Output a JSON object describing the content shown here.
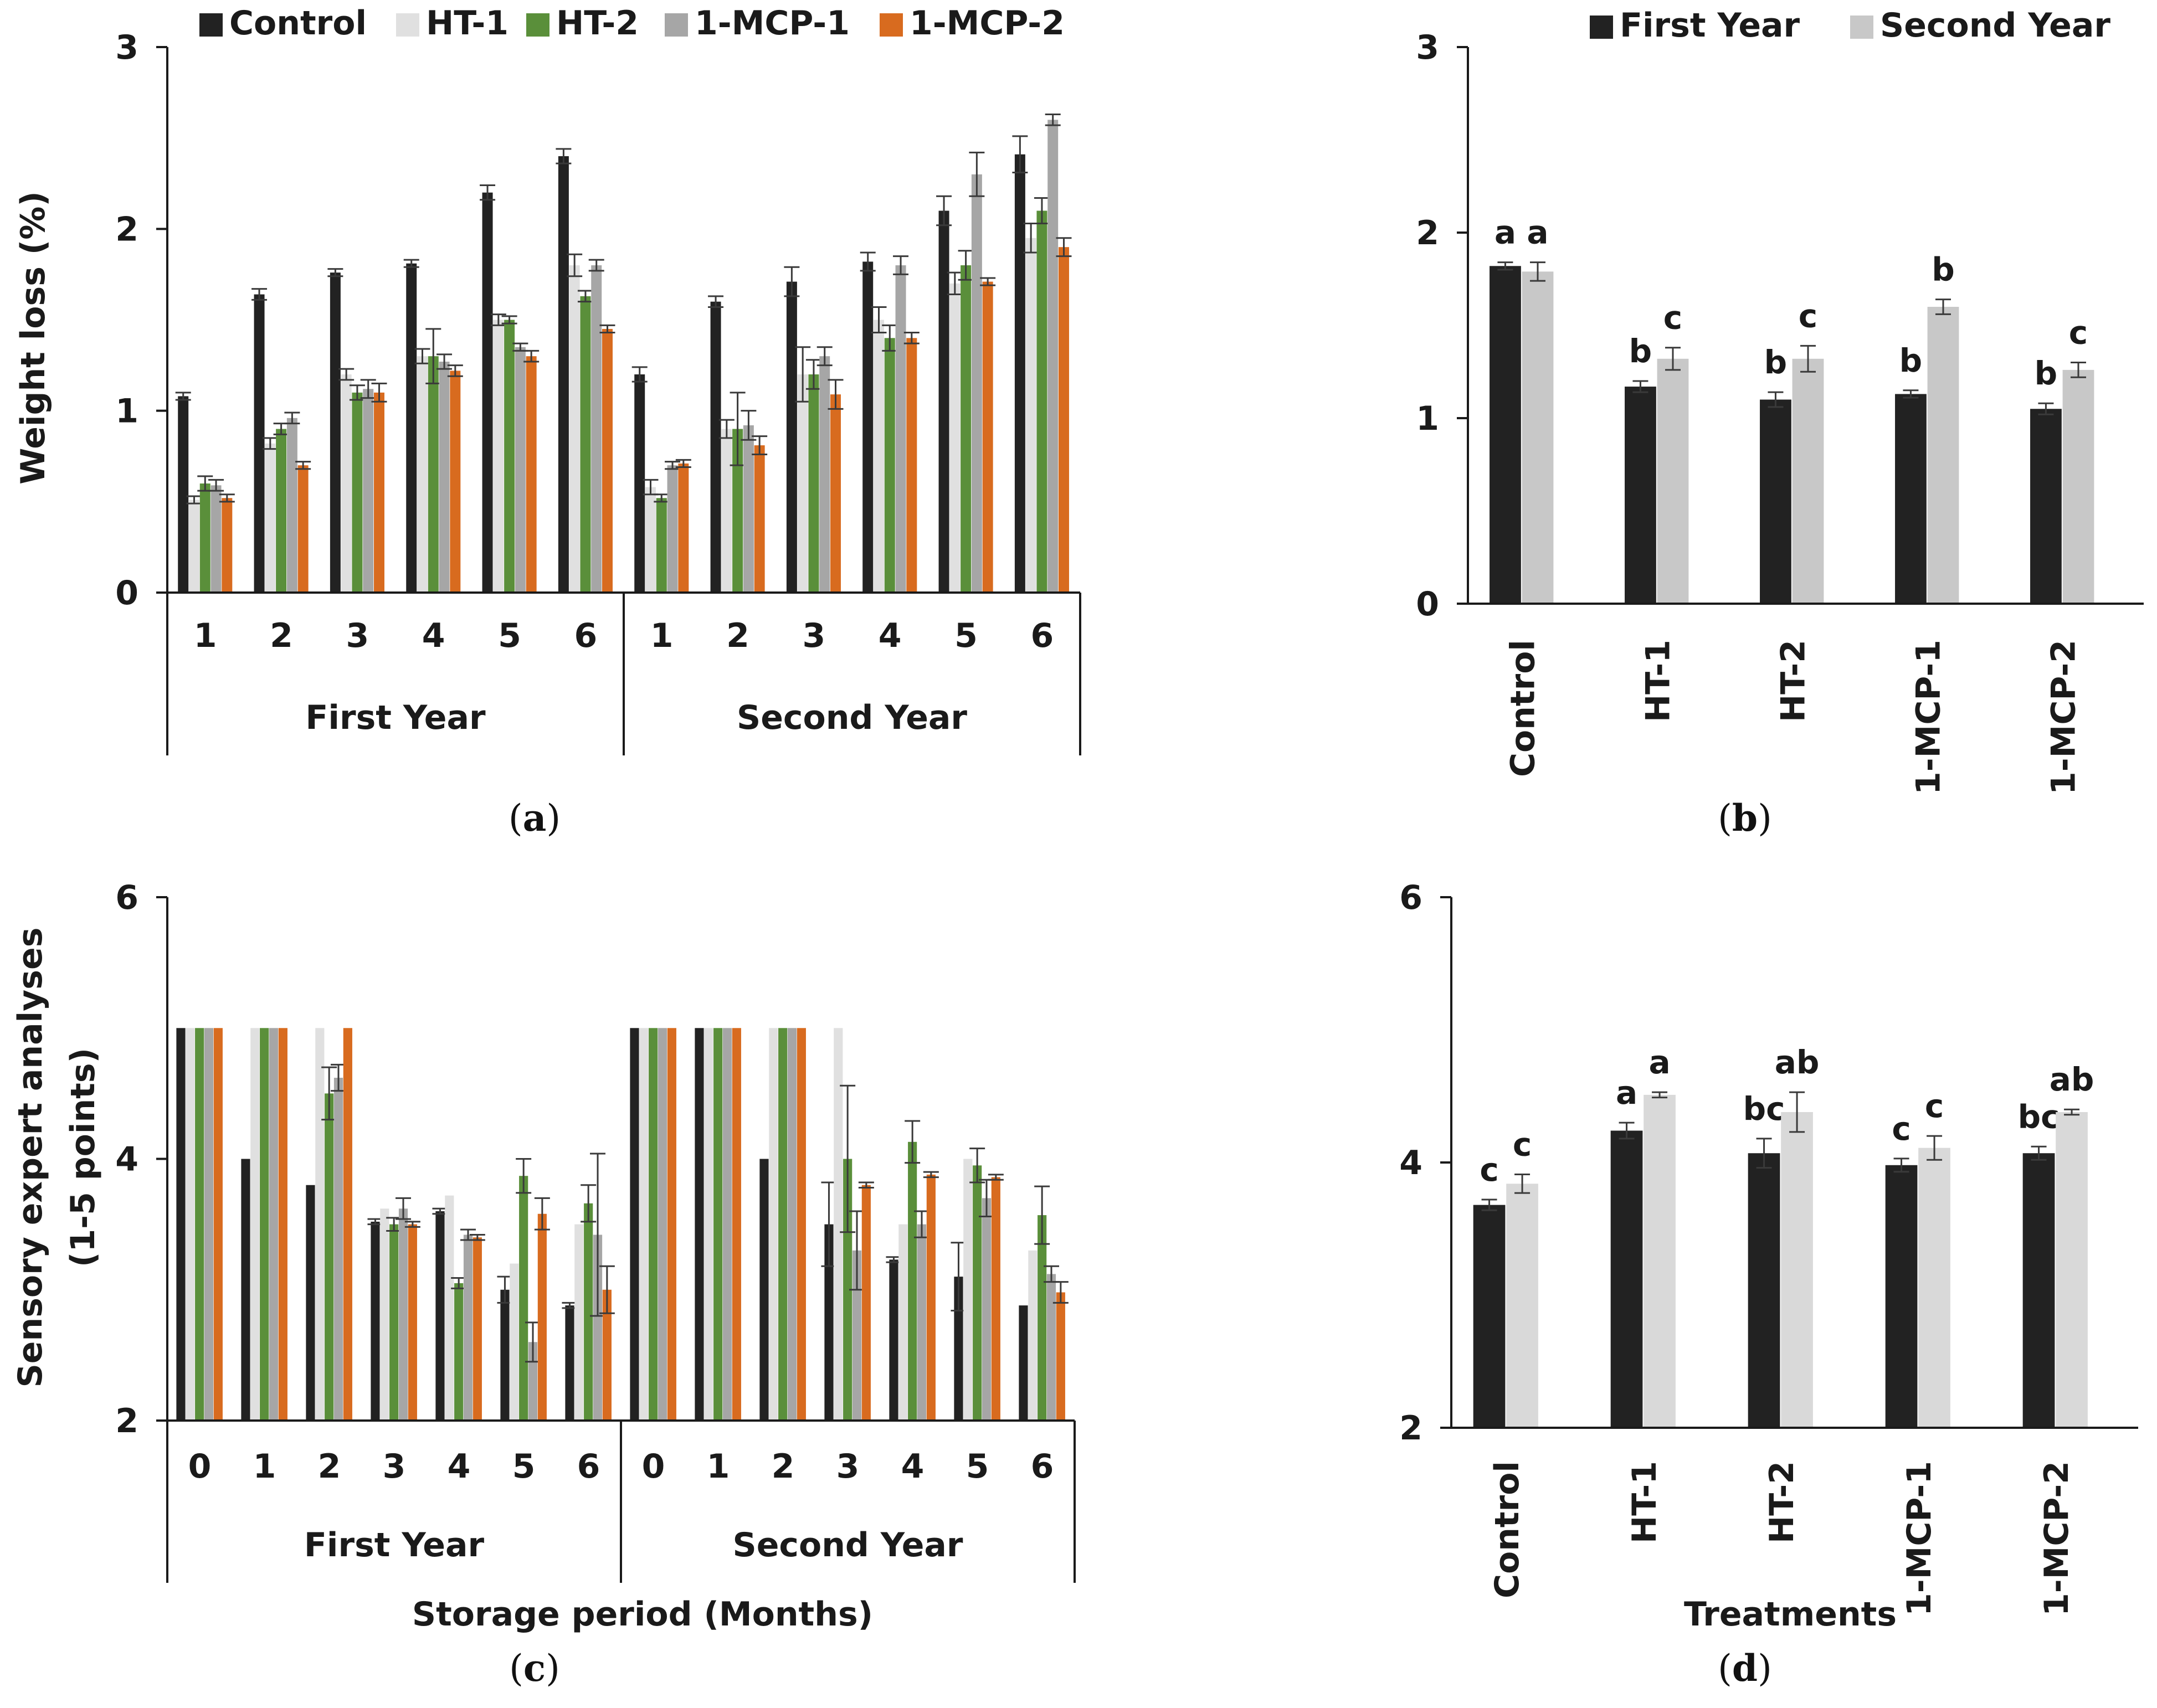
{
  "chart_data": [
    {
      "id": "a",
      "type": "bar",
      "caption": "a",
      "ylabel": "Weight loss (%)",
      "xlabel": "",
      "ylim": [
        0,
        3
      ],
      "yticks": [
        "0",
        "1",
        "2",
        "3"
      ],
      "groups": [
        {
          "label": "First Year",
          "categories": [
            "1",
            "2",
            "3",
            "4",
            "5",
            "6"
          ]
        },
        {
          "label": "Second Year",
          "categories": [
            "1",
            "2",
            "3",
            "4",
            "5",
            "6"
          ]
        }
      ],
      "series": [
        {
          "name": "Control",
          "color": "#222222",
          "values": [
            1.08,
            1.64,
            1.76,
            1.81,
            2.2,
            2.4,
            1.2,
            1.6,
            1.71,
            1.82,
            2.1,
            2.41
          ],
          "errors": [
            0.02,
            0.03,
            0.02,
            0.02,
            0.04,
            0.04,
            0.04,
            0.03,
            0.08,
            0.05,
            0.08,
            0.1
          ]
        },
        {
          "name": "HT-1",
          "color": "#e0e0e0",
          "values": [
            0.51,
            0.82,
            1.2,
            1.3,
            1.5,
            1.8,
            0.58,
            0.9,
            1.2,
            1.5,
            1.7,
            1.95
          ],
          "errors": [
            0.02,
            0.03,
            0.03,
            0.04,
            0.03,
            0.06,
            0.04,
            0.05,
            0.15,
            0.07,
            0.06,
            0.08
          ]
        },
        {
          "name": "HT-2",
          "color": "#5a8f3a",
          "values": [
            0.6,
            0.9,
            1.1,
            1.3,
            1.5,
            1.63,
            0.52,
            0.9,
            1.2,
            1.4,
            1.8,
            2.1
          ],
          "errors": [
            0.04,
            0.03,
            0.04,
            0.15,
            0.02,
            0.03,
            0.02,
            0.2,
            0.08,
            0.07,
            0.08,
            0.07
          ]
        },
        {
          "name": "1-MCP-1",
          "color": "#a6a6a6",
          "values": [
            0.59,
            0.96,
            1.12,
            1.27,
            1.35,
            1.8,
            0.7,
            0.92,
            1.3,
            1.8,
            2.3,
            2.6
          ],
          "errors": [
            0.03,
            0.03,
            0.05,
            0.04,
            0.02,
            0.03,
            0.02,
            0.08,
            0.05,
            0.05,
            0.12,
            0.03
          ]
        },
        {
          "name": "1-MCP-2",
          "color": "#d86b1f",
          "values": [
            0.52,
            0.7,
            1.1,
            1.22,
            1.3,
            1.45,
            0.71,
            0.81,
            1.09,
            1.4,
            1.71,
            1.9
          ],
          "errors": [
            0.02,
            0.02,
            0.05,
            0.03,
            0.03,
            0.02,
            0.02,
            0.05,
            0.08,
            0.03,
            0.02,
            0.05
          ]
        }
      ]
    },
    {
      "id": "b",
      "type": "bar",
      "caption": "b",
      "ylabel": "",
      "xlabel": "",
      "ylim": [
        0,
        3
      ],
      "yticks": [
        "0",
        "1",
        "2",
        "3"
      ],
      "categories": [
        "Control",
        "HT-1",
        "HT-2",
        "1-MCP-1",
        "1-MCP-2"
      ],
      "series": [
        {
          "name": "First Year",
          "color": "#222222",
          "values": [
            1.82,
            1.17,
            1.1,
            1.13,
            1.05
          ],
          "errors": [
            0.02,
            0.03,
            0.04,
            0.02,
            0.03
          ],
          "letters": [
            "a",
            "b",
            "b",
            "b",
            "b"
          ]
        },
        {
          "name": "Second Year",
          "color": "#c8c8c8",
          "values": [
            1.79,
            1.32,
            1.32,
            1.6,
            1.26
          ],
          "errors": [
            0.05,
            0.06,
            0.07,
            0.04,
            0.04
          ],
          "letters": [
            "a",
            "c",
            "c",
            "b",
            "c"
          ]
        }
      ]
    },
    {
      "id": "c",
      "type": "bar",
      "caption": "c",
      "ylabel": "Sensory expert analyses",
      "ylabel2": "(1-5 points)",
      "xlabel": "Storage period (Months)",
      "ylim": [
        2,
        6
      ],
      "yticks": [
        "2",
        "4",
        "6"
      ],
      "groups": [
        {
          "label": "First Year",
          "categories": [
            "0",
            "1",
            "2",
            "3",
            "4",
            "5",
            "6"
          ]
        },
        {
          "label": "Second Year",
          "categories": [
            "0",
            "1",
            "2",
            "3",
            "4",
            "5",
            "6"
          ]
        }
      ],
      "series": [
        {
          "name": "Control",
          "color": "#222222",
          "values": [
            5.0,
            4.0,
            3.8,
            3.52,
            3.6,
            3.0,
            2.88,
            5.0,
            5.0,
            4.0,
            3.5,
            3.23,
            3.1,
            2.88
          ],
          "errors": [
            0,
            0,
            0,
            0.02,
            0.02,
            0.1,
            0.02,
            0,
            0,
            0,
            0.32,
            0.02,
            0.26,
            0
          ]
        },
        {
          "name": "HT-1",
          "color": "#e0e0e0",
          "values": [
            5.0,
            5.0,
            5.0,
            3.62,
            3.72,
            3.2,
            3.5,
            5.0,
            5.0,
            5.0,
            5.0,
            3.5,
            4.0,
            3.3
          ]
        },
        {
          "name": "HT-2",
          "color": "#5a8f3a",
          "values": [
            5.0,
            5.0,
            4.5,
            3.5,
            3.05,
            3.87,
            3.66,
            5.0,
            5.0,
            5.0,
            4.0,
            4.13,
            3.95,
            3.57
          ],
          "errors": [
            0,
            0,
            0.2,
            0.05,
            0.04,
            0.13,
            0.14,
            0,
            0,
            0,
            0.56,
            0.16,
            0.13,
            0.22
          ]
        },
        {
          "name": "1-MCP-1",
          "color": "#a6a6a6",
          "values": [
            5.0,
            5.0,
            4.62,
            3.62,
            3.42,
            2.6,
            3.42,
            5.0,
            5.0,
            5.0,
            3.3,
            3.5,
            3.7,
            3.12
          ],
          "errors": [
            0,
            0,
            0.1,
            0.08,
            0.04,
            0.15,
            0.62,
            0,
            0,
            0,
            0.3,
            0.1,
            0.14,
            0.06
          ]
        },
        {
          "name": "1-MCP-2",
          "color": "#d86b1f",
          "values": [
            5.0,
            5.0,
            5.0,
            3.5,
            3.4,
            3.58,
            3.0,
            5.0,
            5.0,
            5.0,
            3.8,
            3.88,
            3.86,
            2.98
          ],
          "errors": [
            0,
            0,
            0,
            0.02,
            0.02,
            0.12,
            0.18,
            0,
            0,
            0,
            0.02,
            0.02,
            0.02,
            0.08
          ]
        }
      ]
    },
    {
      "id": "d",
      "type": "bar",
      "caption": "d",
      "ylabel": "",
      "xlabel": "Treatments",
      "ylim": [
        2,
        6
      ],
      "yticks": [
        "2",
        "4",
        "6"
      ],
      "categories": [
        "Control",
        "HT-1",
        "HT-2",
        "1-MCP-1",
        "1-MCP-2"
      ],
      "series": [
        {
          "name": "First Year",
          "color": "#222222",
          "values": [
            3.68,
            4.24,
            4.07,
            3.98,
            4.07
          ],
          "errors": [
            0.04,
            0.06,
            0.11,
            0.05,
            0.05
          ],
          "letters": [
            "c",
            "a",
            "bc",
            "c",
            "bc"
          ]
        },
        {
          "name": "Second Year",
          "color": "#d9d9d9",
          "values": [
            3.84,
            4.51,
            4.38,
            4.11,
            4.38
          ],
          "errors": [
            0.07,
            0.02,
            0.15,
            0.09,
            0.02
          ],
          "letters": [
            "c",
            "a",
            "ab",
            "c",
            "ab"
          ]
        }
      ]
    }
  ]
}
